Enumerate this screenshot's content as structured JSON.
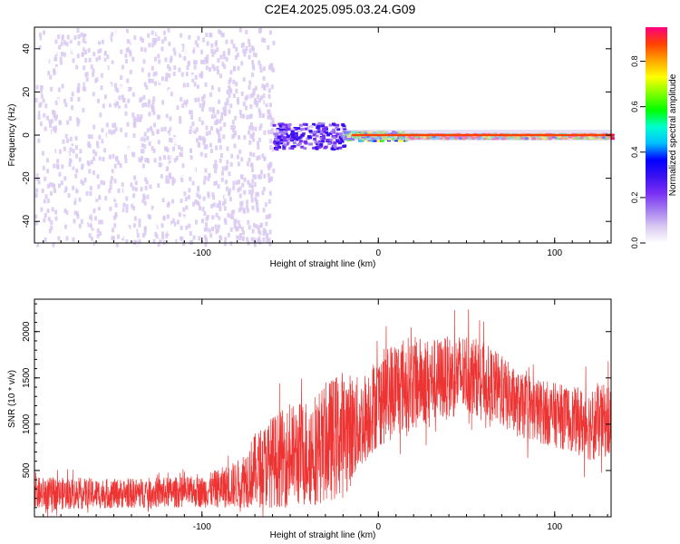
{
  "figure": {
    "title": "C2E4.2025.095.03.24.G09"
  },
  "colors": {
    "snr_line": "#ee3333",
    "frame": "#000000",
    "background": "#ffffff",
    "colormap": [
      "#ffffff",
      "#d9c9f2",
      "#a37cf0",
      "#7a2ff5",
      "#3a11f0",
      "#0000ff",
      "#00bfff",
      "#00ffd0",
      "#00ff00",
      "#80ff00",
      "#ffff00",
      "#ffa500",
      "#ff4000",
      "#ff0080"
    ]
  },
  "chart_data": [
    {
      "type": "heatmap",
      "title": "C2E4.2025.095.03.24.G09",
      "xlabel": "Height of straight line (km)",
      "ylabel": "Frequency (Hz)",
      "xlim": [
        -195,
        132
      ],
      "ylim": [
        -50,
        50
      ],
      "xticks": [
        -100,
        0,
        100
      ],
      "xtick_labels": [
        "-100",
        "0",
        "100"
      ],
      "yticks": [
        -40,
        -20,
        0,
        20,
        40
      ],
      "ytick_labels": [
        "-40",
        "-20",
        "0",
        "20",
        "40"
      ],
      "colorbar": {
        "label": "Normalized spectral amplitude",
        "range": [
          0,
          0.95
        ],
        "ticks": [
          0.0,
          0.2,
          0.4,
          0.6,
          0.8
        ],
        "tick_labels": [
          "0.0",
          "0.2",
          "0.4",
          "0.6",
          "0.8"
        ]
      },
      "regions": [
        {
          "x_range": [
            -195,
            -100
          ],
          "description_level": 0.05,
          "spread_hz": 50
        },
        {
          "x_range": [
            -100,
            -60
          ],
          "description_level": 0.08,
          "spread_hz": 50
        },
        {
          "x_range": [
            -60,
            -20
          ],
          "description_level": 0.25,
          "spread_hz": 6
        },
        {
          "x_range": [
            -20,
            15
          ],
          "description_level": 0.6,
          "spread_hz": 2
        },
        {
          "x_range": [
            15,
            132
          ],
          "description_level": 0.9,
          "spread_hz": 1
        }
      ],
      "grid": false
    },
    {
      "type": "line",
      "xlabel": "Height of straight line (km)",
      "ylabel": "SNR (10 * v/v)",
      "xlim": [
        -195,
        132
      ],
      "ylim": [
        0,
        2350
      ],
      "xticks": [
        -100,
        0,
        100
      ],
      "xtick_labels": [
        "-100",
        "0",
        "100"
      ],
      "yticks": [
        500,
        1000,
        1500,
        2000
      ],
      "ytick_labels": [
        "500",
        "1000",
        "1500",
        "2000"
      ],
      "envelope": {
        "x": [
          -195,
          -150,
          -100,
          -80,
          -70,
          -60,
          -40,
          -30,
          -20,
          -10,
          -5,
          0,
          10,
          20,
          30,
          40,
          50,
          60,
          70,
          80,
          90,
          100,
          110,
          120,
          132
        ],
        "y": [
          250,
          250,
          270,
          350,
          500,
          600,
          700,
          800,
          900,
          1000,
          1150,
          1250,
          1400,
          1450,
          1480,
          1500,
          1550,
          1480,
          1350,
          1200,
          1150,
          1100,
          1050,
          1000,
          1050
        ],
        "spread": [
          180,
          160,
          170,
          260,
          400,
          500,
          600,
          650,
          700,
          500,
          500,
          500,
          550,
          500,
          450,
          450,
          450,
          400,
          400,
          350,
          350,
          350,
          350,
          400,
          400
        ]
      },
      "grid": false
    }
  ]
}
